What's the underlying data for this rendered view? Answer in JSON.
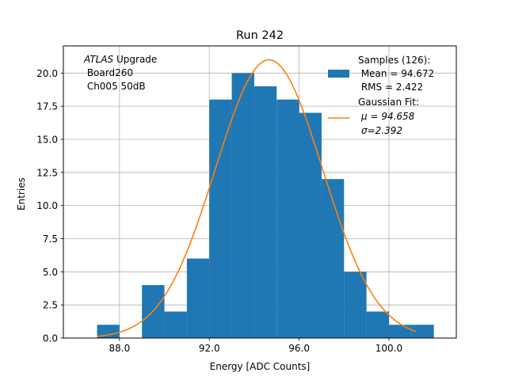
{
  "chart_data": {
    "type": "bar",
    "title": "Run 242",
    "xlabel": "Energy [ADC Counts]",
    "ylabel": "Entries",
    "xlim": [
      85.5,
      103.0
    ],
    "ylim": [
      0,
      22.05
    ],
    "grid": true,
    "x_ticks": [
      88.0,
      92.0,
      96.0,
      100.0
    ],
    "y_ticks": [
      0.0,
      2.5,
      5.0,
      7.5,
      10.0,
      12.5,
      15.0,
      17.5,
      20.0
    ],
    "x_tick_labels": [
      "88.0",
      "92.0",
      "96.0",
      "100.0"
    ],
    "y_tick_labels": [
      "0.0",
      "2.5",
      "5.0",
      "7.5",
      "10.0",
      "12.5",
      "15.0",
      "17.5",
      "20.0"
    ],
    "annotation": {
      "line1_italic": "ATLAS",
      "line1_rest": " Upgrade",
      "line2": " Board260",
      "line3": " Ch005 50dB"
    },
    "legend": {
      "placement": "upper-right",
      "samples_label": [
        "Samples (126):",
        " Mean = 94.672",
        " RMS = 2.422"
      ],
      "fit_label": [
        "Gaussian Fit:",
        "μ = 94.658",
        "σ=2.392"
      ]
    },
    "histogram": {
      "name": "Samples (126):",
      "color": "#1f77b4",
      "bin_edges": [
        87,
        88,
        89,
        90,
        91,
        92,
        93,
        94,
        95,
        96,
        97,
        98,
        99,
        100,
        101,
        102
      ],
      "counts": [
        1,
        0,
        4,
        2,
        6,
        18,
        20,
        19,
        18,
        17,
        12,
        5,
        2,
        1,
        1
      ]
    },
    "fit": {
      "name": "Gaussian Fit:",
      "color": "#ff7f0e",
      "amplitude": 21.0,
      "mu": 94.658,
      "sigma": 2.392,
      "x_range": [
        87.0,
        101.2
      ]
    }
  }
}
